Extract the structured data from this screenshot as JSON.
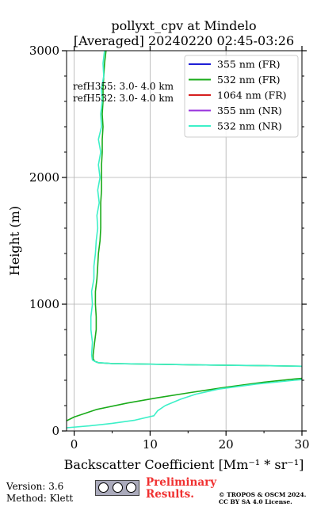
{
  "chart_data": {
    "type": "line",
    "title": [
      "pollyxt_cpv at Mindelo",
      "[Averaged] 20240220 02:45-03:26"
    ],
    "xlabel": "Backscatter Coefficient [Mm⁻¹ * sr⁻¹]",
    "ylabel": "Height (m)",
    "xlim": [
      -1,
      30
    ],
    "ylim": [
      0,
      3000
    ],
    "xticks": [
      "0",
      "10",
      "20",
      "30"
    ],
    "yticks": [
      "0",
      "1000",
      "2000",
      "3000"
    ],
    "grid": true,
    "legend_position": "top-right",
    "annotations": [
      "refH355:  3.0- 4.0 km",
      "refH532:  3.0- 4.0 km"
    ],
    "series": [
      {
        "name": "355 nm (FR)",
        "color": "#1f1fd6",
        "points": []
      },
      {
        "name": "532 nm (FR)",
        "color": "#1aab1a",
        "points": [
          [
            -1,
            80
          ],
          [
            0,
            110
          ],
          [
            3,
            170
          ],
          [
            7,
            220
          ],
          [
            11,
            262
          ],
          [
            15,
            300
          ],
          [
            20,
            345
          ],
          [
            25,
            385
          ],
          [
            29,
            410
          ],
          [
            31,
            420
          ],
          [
            31,
            510
          ],
          [
            25,
            515
          ],
          [
            18,
            520
          ],
          [
            10,
            527
          ],
          [
            5,
            532
          ],
          [
            3.2,
            538
          ],
          [
            2.7,
            550
          ],
          [
            2.5,
            570
          ],
          [
            2.5,
            600
          ],
          [
            2.7,
            700
          ],
          [
            2.9,
            800
          ],
          [
            2.9,
            900
          ],
          [
            2.8,
            1000
          ],
          [
            2.8,
            1100
          ],
          [
            3.0,
            1200
          ],
          [
            3.1,
            1300
          ],
          [
            3.2,
            1400
          ],
          [
            3.4,
            1500
          ],
          [
            3.5,
            1600
          ],
          [
            3.5,
            1700
          ],
          [
            3.5,
            1800
          ],
          [
            3.6,
            1900
          ],
          [
            3.6,
            2000
          ],
          [
            3.6,
            2100
          ],
          [
            3.7,
            2200
          ],
          [
            3.7,
            2300
          ],
          [
            3.8,
            2400
          ],
          [
            3.7,
            2500
          ],
          [
            3.8,
            2600
          ],
          [
            3.8,
            2700
          ],
          [
            3.9,
            2800
          ],
          [
            4.0,
            2900
          ],
          [
            4.2,
            3000
          ]
        ]
      },
      {
        "name": "1064 nm (FR)",
        "color": "#d61f1f",
        "points": []
      },
      {
        "name": "355 nm (NR)",
        "color": "#9933dd",
        "points": []
      },
      {
        "name": "532 nm (NR)",
        "color": "#3df0c8",
        "points": [
          [
            -1,
            25
          ],
          [
            2,
            40
          ],
          [
            5,
            60
          ],
          [
            8,
            85
          ],
          [
            10.5,
            120
          ],
          [
            11,
            160
          ],
          [
            12,
            200
          ],
          [
            14,
            250
          ],
          [
            16,
            290
          ],
          [
            19,
            330
          ],
          [
            24,
            370
          ],
          [
            29,
            400
          ],
          [
            31,
            410
          ],
          [
            31,
            510
          ],
          [
            25,
            515
          ],
          [
            18,
            520
          ],
          [
            10,
            527
          ],
          [
            5,
            532
          ],
          [
            3.0,
            540
          ],
          [
            2.4,
            560
          ],
          [
            2.3,
            600
          ],
          [
            2.4,
            700
          ],
          [
            2.2,
            800
          ],
          [
            2.2,
            900
          ],
          [
            2.4,
            1000
          ],
          [
            2.3,
            1100
          ],
          [
            2.6,
            1200
          ],
          [
            2.6,
            1300
          ],
          [
            2.8,
            1400
          ],
          [
            2.9,
            1500
          ],
          [
            3.1,
            1600
          ],
          [
            3.0,
            1700
          ],
          [
            3.3,
            1800
          ],
          [
            3.1,
            1900
          ],
          [
            3.4,
            2000
          ],
          [
            3.2,
            2100
          ],
          [
            3.5,
            2200
          ],
          [
            3.2,
            2300
          ],
          [
            3.6,
            2400
          ],
          [
            3.5,
            2500
          ],
          [
            3.7,
            2600
          ],
          [
            3.6,
            2700
          ],
          [
            3.9,
            2800
          ],
          [
            3.8,
            2900
          ],
          [
            4.0,
            3000
          ]
        ]
      }
    ]
  },
  "footer": {
    "version": "Version: 3.6",
    "method": "Method: Klett",
    "preliminary": "Preliminary Results.",
    "copyright": "© TROPOS & OSCM 2024. CC BY SA 4.0 License."
  },
  "colors": {
    "grid": "#b0b0b0",
    "preliminary": "#f03030"
  },
  "icons": [
    "cc-by-sa-license-icon"
  ]
}
